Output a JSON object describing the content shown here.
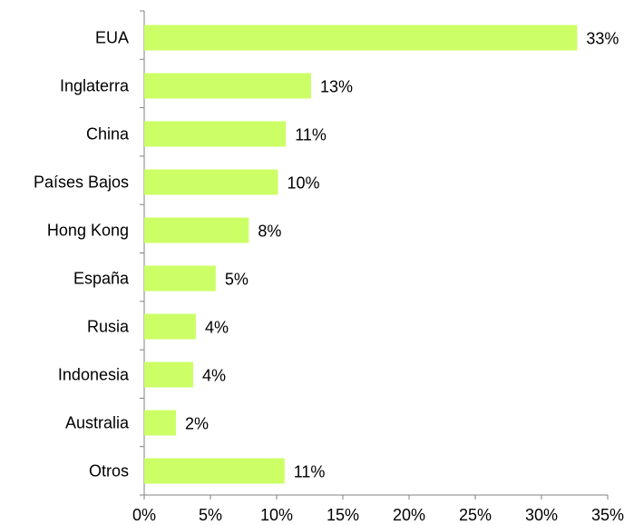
{
  "chart_data": {
    "type": "bar",
    "orientation": "horizontal",
    "categories": [
      "EUA",
      "Inglaterra",
      "China",
      "Países Bajos",
      "Hong Kong",
      "España",
      "Rusia",
      "Indonesia",
      "Australia",
      "Otros"
    ],
    "values": [
      32.7,
      12.6,
      10.7,
      10.1,
      7.9,
      5.4,
      3.9,
      3.7,
      2.4,
      10.6
    ],
    "value_labels": [
      "33%",
      "13%",
      "11%",
      "10%",
      "8%",
      "5%",
      "4%",
      "4%",
      "2%",
      "11%"
    ],
    "color": "#ccff66",
    "xlim": [
      0,
      35
    ],
    "xticks": [
      {
        "value": 0,
        "label": "0%"
      },
      {
        "value": 5,
        "label": "5%"
      },
      {
        "value": 10,
        "label": "10%"
      },
      {
        "value": 15,
        "label": "15%"
      },
      {
        "value": 20,
        "label": "20%"
      },
      {
        "value": 25,
        "label": "25%"
      },
      {
        "value": 30,
        "label": "30%"
      },
      {
        "value": 35,
        "label": "35%"
      }
    ],
    "grid": false
  }
}
